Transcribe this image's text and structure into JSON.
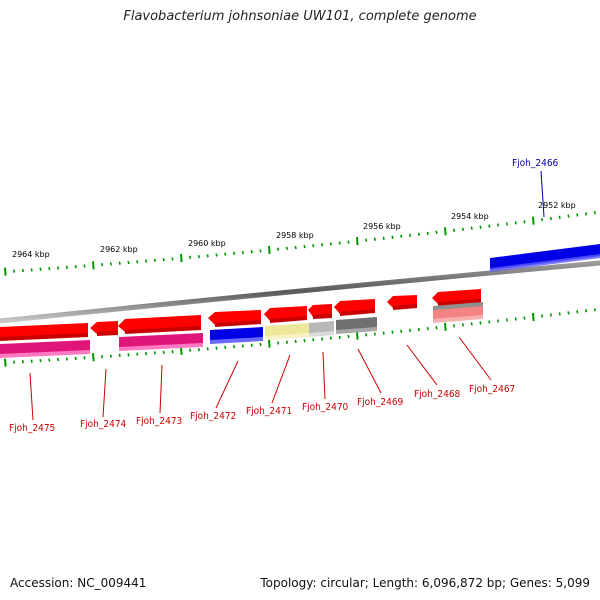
{
  "title": "Flavobacterium johnsoniae UW101, complete genome",
  "accession": "Accession: NC_009441",
  "topology": "Topology: circular; Length: 6,096,872 bp; Genes: 5,099",
  "colors": {
    "red": "#ff0000",
    "magenta": "#e0157a",
    "blue": "#0000e6",
    "pale_yellow": "#ede79a",
    "light_gray": "#b8b8b8",
    "dark_gray": "#707070",
    "salmon": "#f48484",
    "tick_green": "#009600",
    "label_red": "#cc0000",
    "label_blue": "#0000aa"
  },
  "kbp_labels": [
    "2964 kbp",
    "2962 kbp",
    "2960 kbp",
    "2958 kbp",
    "2956 kbp",
    "2954 kbp",
    "2952 kbp"
  ],
  "gene_labels": [
    {
      "name": "Fjoh_2466",
      "color": "blue"
    },
    {
      "name": "Fjoh_2467",
      "color": "red"
    },
    {
      "name": "Fjoh_2468",
      "color": "red"
    },
    {
      "name": "Fjoh_2469",
      "color": "red"
    },
    {
      "name": "Fjoh_2470",
      "color": "red"
    },
    {
      "name": "Fjoh_2471",
      "color": "red"
    },
    {
      "name": "Fjoh_2472",
      "color": "red"
    },
    {
      "name": "Fjoh_2473",
      "color": "red"
    },
    {
      "name": "Fjoh_2474",
      "color": "red"
    },
    {
      "name": "Fjoh_2475",
      "color": "red"
    }
  ]
}
